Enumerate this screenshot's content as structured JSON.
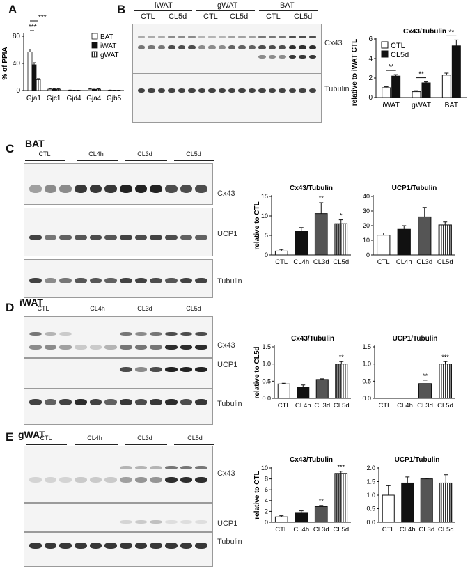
{
  "panels": {
    "A": {
      "letter": "A",
      "ylabel": "% of PPIA",
      "legend": [
        "BAT",
        "iWAT",
        "gWAT"
      ],
      "sig": [
        "***",
        "***"
      ]
    },
    "B": {
      "letter": "B",
      "tissues": [
        "iWAT",
        "gWAT",
        "BAT"
      ],
      "conditions": [
        "CTL",
        "CL5d",
        "CTL",
        "CL5d",
        "CTL",
        "CL5d"
      ],
      "blot_labels": [
        "Cx43",
        "Tubulin"
      ],
      "chart_title": "Cx43/Tubulin",
      "legend": [
        "CTL",
        "CL5d"
      ]
    },
    "C": {
      "letter": "C",
      "tissue": "BAT",
      "groups": [
        "CTL",
        "CL4h",
        "CL3d",
        "CL5d"
      ],
      "blot_labels": [
        "Cx43",
        "UCP1",
        "Tubulin"
      ],
      "chart_titles": [
        "Cx43/Tubulin",
        "UCP1/Tubulin"
      ]
    },
    "D": {
      "letter": "D",
      "tissue": "iWAT",
      "groups": [
        "CTL",
        "CL4h",
        "CL3d",
        "CL5d"
      ],
      "blot_labels": [
        "Cx43",
        "UCP1",
        "Tubulin"
      ],
      "chart_titles": [
        "Cx43/Tubulin",
        "UCP1/Tubulin"
      ]
    },
    "E": {
      "letter": "E",
      "tissue": "gWAT",
      "groups": [
        "CTL",
        "CL4h",
        "CL3d",
        "CL5d"
      ],
      "blot_labels": [
        "Cx43",
        "UCP1",
        "Tubulin"
      ],
      "chart_titles": [
        "Cx43/Tubulin",
        "UCP1/Tubulin"
      ]
    }
  },
  "colors": {
    "bar_dark": "#111111",
    "bar_mid": "#555555",
    "bar_light": "#ffffff"
  },
  "chart_data": [
    {
      "id": "A",
      "type": "bar",
      "categories": [
        "Gja1",
        "Gjc1",
        "Gjd4",
        "Gja4",
        "Gjb5"
      ],
      "series": [
        {
          "name": "BAT",
          "values": [
            57,
            2,
            0.5,
            2,
            0.5
          ],
          "errors": [
            4,
            0.5,
            0.2,
            0.5,
            0.2
          ]
        },
        {
          "name": "iWAT",
          "values": [
            38,
            2,
            0.3,
            1.5,
            0.3
          ],
          "errors": [
            3,
            0.5,
            0.2,
            0.5,
            0.2
          ]
        },
        {
          "name": "gWAT",
          "values": [
            16,
            2,
            0.3,
            2,
            0.3
          ],
          "errors": [
            1.5,
            0.5,
            0.2,
            0.5,
            0.2
          ]
        }
      ],
      "yticks": [
        0,
        40,
        80
      ],
      "ylim": [
        0,
        80
      ],
      "ylabel": "% of PPIA"
    },
    {
      "id": "B",
      "type": "bar",
      "title": "Cx43/Tubulin",
      "categories": [
        "iWAT",
        "gWAT",
        "BAT"
      ],
      "series": [
        {
          "name": "CTL",
          "values": [
            1.0,
            0.6,
            2.3
          ],
          "errors": [
            0.1,
            0.1,
            0.2
          ]
        },
        {
          "name": "CL5d",
          "values": [
            2.2,
            1.5,
            5.3
          ],
          "errors": [
            0.15,
            0.1,
            0.6
          ]
        }
      ],
      "sig": [
        "**",
        "**",
        "**"
      ],
      "yticks": [
        0,
        2,
        4,
        6
      ],
      "ylim": [
        0,
        6
      ],
      "ylabel": "relative to iWAT CTL"
    },
    {
      "id": "C-Cx43",
      "type": "bar",
      "title": "Cx43/Tubulin",
      "categories": [
        "CTL",
        "CL4h",
        "CL3d",
        "CL5d"
      ],
      "values": [
        1.0,
        6.0,
        10.6,
        8.0
      ],
      "errors": [
        0.4,
        1.0,
        2.8,
        1.0
      ],
      "sig": [
        "",
        "",
        "**",
        "*"
      ],
      "yticks": [
        0,
        5,
        10,
        15
      ],
      "ylim": [
        0,
        15
      ],
      "ylabel": "relative to CTL"
    },
    {
      "id": "C-UCP1",
      "type": "bar",
      "title": "UCP1/Tubulin",
      "categories": [
        "CTL",
        "CL4h",
        "CL3d",
        "CL5d"
      ],
      "values": [
        13.5,
        17.5,
        26.0,
        20.5
      ],
      "errors": [
        1.5,
        2.5,
        6.5,
        2.0
      ],
      "sig": [
        "",
        "",
        "",
        ""
      ],
      "yticks": [
        0,
        10,
        20,
        30,
        40
      ],
      "ylim": [
        0,
        40
      ],
      "ylabel": ""
    },
    {
      "id": "D-Cx43",
      "type": "bar",
      "title": "Cx43/Tubulin",
      "categories": [
        "CTL",
        "CL4h",
        "CL3d",
        "CL5d"
      ],
      "values": [
        0.42,
        0.33,
        0.55,
        1.0
      ],
      "errors": [
        0.02,
        0.06,
        0.02,
        0.07
      ],
      "sig": [
        "",
        "",
        "",
        "**"
      ],
      "yticks": [
        0.0,
        0.5,
        1.0,
        1.5
      ],
      "ylim": [
        0,
        1.5
      ],
      "ylabel": "relative to CL5d"
    },
    {
      "id": "D-UCP1",
      "type": "bar",
      "title": "UCP1/Tubulin",
      "categories": [
        "CTL",
        "CL4h",
        "CL3d",
        "CL5d"
      ],
      "values": [
        0.0,
        0.0,
        0.43,
        1.0
      ],
      "errors": [
        0.0,
        0.0,
        0.1,
        0.07
      ],
      "sig": [
        "",
        "",
        "**",
        "***"
      ],
      "yticks": [
        0.0,
        0.5,
        1.0,
        1.5
      ],
      "ylim": [
        0,
        1.5
      ],
      "ylabel": ""
    },
    {
      "id": "E-Cx43",
      "type": "bar",
      "title": "Cx43/Tubulin",
      "categories": [
        "CTL",
        "CL4h",
        "CL3d",
        "CL5d"
      ],
      "values": [
        1.0,
        1.8,
        2.9,
        9.0
      ],
      "errors": [
        0.2,
        0.3,
        0.2,
        0.4
      ],
      "sig": [
        "",
        "",
        "**",
        "***"
      ],
      "yticks": [
        0,
        2,
        4,
        6,
        8,
        10
      ],
      "ylim": [
        0,
        10
      ],
      "ylabel": "relative to CTL"
    },
    {
      "id": "E-UCP1",
      "type": "bar",
      "title": "UCP1/Tubulin",
      "categories": [
        "CTL",
        "CL4h",
        "CL3d",
        "CL5d"
      ],
      "values": [
        1.0,
        1.45,
        1.6,
        1.45
      ],
      "errors": [
        0.35,
        0.22,
        0.02,
        0.3
      ],
      "sig": [
        "",
        "",
        "",
        ""
      ],
      "yticks": [
        0.0,
        0.5,
        1.0,
        1.5,
        2.0
      ],
      "ylim": [
        0,
        2.0
      ],
      "ylabel": ""
    }
  ]
}
